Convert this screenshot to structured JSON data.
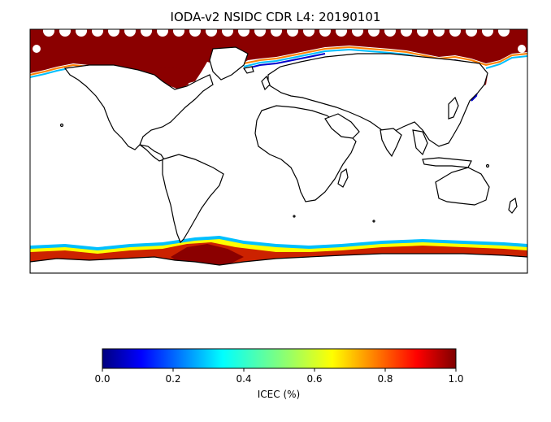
{
  "title": "IODA-v2 NSIDC CDR L4: 20190101",
  "colorbar": {
    "label": "ICEC (%)",
    "ticks": [
      "0.0",
      "0.2",
      "0.4",
      "0.6",
      "0.8",
      "1.0"
    ],
    "range": [
      0.0,
      1.0
    ],
    "colormap": "jet",
    "colors": [
      "#00007f",
      "#0000ff",
      "#007fff",
      "#00ffff",
      "#7fff7f",
      "#ffff00",
      "#ff7f00",
      "#ff0000",
      "#7f0000"
    ]
  },
  "map": {
    "projection": "plate-carree",
    "land_fill": "#ffffff",
    "coastline_color": "#000000",
    "ice_high_color": "#8b0000"
  }
}
